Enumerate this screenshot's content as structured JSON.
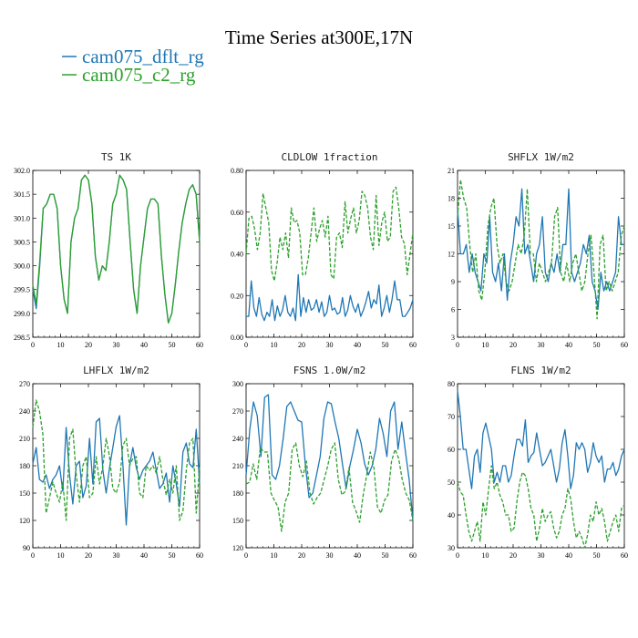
{
  "figure": {
    "title": "Time Series at300E,17N",
    "legend": [
      {
        "label": "cam075_dflt_rg",
        "color": "#1f77b4"
      },
      {
        "label": "cam075_c2_rg",
        "color": "#2ca02c"
      }
    ]
  },
  "chart_data": [
    {
      "type": "line",
      "title": "TS   1K",
      "xlim": [
        0,
        60
      ],
      "ylim": [
        298.5,
        302.0
      ],
      "xticks": [
        "0",
        "10",
        "20",
        "30",
        "40",
        "50",
        "60"
      ],
      "yticks": [
        "298.5",
        "299.0",
        "299.5",
        "300.0",
        "300.5",
        "301.0",
        "301.5",
        "302.0"
      ],
      "series": [
        {
          "name": "cam075_dflt_rg",
          "color": "#1f77b4",
          "dash": "",
          "y": [
            299.5,
            299.1,
            300.0,
            301.2,
            301.3,
            301.5,
            301.5,
            301.2,
            300.0,
            299.3,
            299.0,
            300.5,
            301.0,
            301.2,
            301.8,
            301.9,
            301.8,
            301.3,
            300.2,
            299.7,
            300.0,
            299.9,
            300.5,
            301.3,
            301.5,
            301.9,
            301.8,
            301.6,
            300.5,
            299.5,
            299.0,
            300.0,
            300.6,
            301.2,
            301.4,
            301.4,
            301.3,
            300.2,
            299.4,
            298.8,
            299.0,
            299.6,
            300.3,
            300.9,
            301.3,
            301.6,
            301.7,
            301.5,
            300.5
          ]
        },
        {
          "name": "cam075_c2_rg",
          "color": "#2ca02c",
          "dash": "",
          "y": [
            299.6,
            299.2,
            300.1,
            301.2,
            301.3,
            301.5,
            301.5,
            301.2,
            300.0,
            299.3,
            299.0,
            300.5,
            301.0,
            301.2,
            301.8,
            301.9,
            301.8,
            301.3,
            300.2,
            299.7,
            300.0,
            299.9,
            300.5,
            301.3,
            301.5,
            301.9,
            301.8,
            301.6,
            300.5,
            299.5,
            299.0,
            300.0,
            300.6,
            301.2,
            301.4,
            301.4,
            301.3,
            300.2,
            299.4,
            298.8,
            299.0,
            299.6,
            300.3,
            300.9,
            301.3,
            301.6,
            301.7,
            301.5,
            300.5
          ]
        }
      ]
    },
    {
      "type": "line",
      "title": "CLDLOW   1fraction",
      "xlim": [
        0,
        60
      ],
      "ylim": [
        0.0,
        0.8
      ],
      "xticks": [
        "0",
        "10",
        "20",
        "30",
        "40",
        "50",
        "60"
      ],
      "yticks": [
        "0.00",
        "0.20",
        "0.40",
        "0.60",
        "0.80"
      ],
      "series": [
        {
          "name": "cam075_dflt_rg",
          "color": "#1f77b4",
          "dash": "",
          "y": [
            0.1,
            0.1,
            0.27,
            0.14,
            0.1,
            0.19,
            0.11,
            0.08,
            0.12,
            0.1,
            0.18,
            0.08,
            0.15,
            0.1,
            0.13,
            0.2,
            0.12,
            0.1,
            0.14,
            0.08,
            0.3,
            0.1,
            0.19,
            0.12,
            0.18,
            0.13,
            0.14,
            0.18,
            0.12,
            0.17,
            0.1,
            0.12,
            0.2,
            0.13,
            0.14,
            0.11,
            0.12,
            0.19,
            0.1,
            0.13,
            0.2,
            0.15,
            0.12,
            0.16,
            0.1,
            0.13,
            0.17,
            0.22,
            0.14,
            0.18,
            0.16,
            0.25,
            0.1,
            0.14,
            0.2,
            0.12,
            0.18,
            0.27,
            0.18,
            0.18,
            0.1,
            0.1,
            0.12,
            0.14,
            0.18
          ]
        },
        {
          "name": "cam075_c2_rg",
          "color": "#2ca02c",
          "dash": "4,2",
          "y": [
            0.4,
            0.57,
            0.58,
            0.52,
            0.42,
            0.5,
            0.69,
            0.62,
            0.55,
            0.32,
            0.27,
            0.36,
            0.48,
            0.42,
            0.5,
            0.38,
            0.62,
            0.55,
            0.56,
            0.5,
            0.3,
            0.3,
            0.38,
            0.5,
            0.62,
            0.46,
            0.52,
            0.56,
            0.48,
            0.58,
            0.3,
            0.28,
            0.48,
            0.5,
            0.43,
            0.65,
            0.5,
            0.57,
            0.62,
            0.5,
            0.56,
            0.7,
            0.68,
            0.62,
            0.48,
            0.42,
            0.68,
            0.44,
            0.55,
            0.6,
            0.46,
            0.48,
            0.7,
            0.72,
            0.62,
            0.48,
            0.45,
            0.3,
            0.4,
            0.5
          ]
        }
      ]
    },
    {
      "type": "line",
      "title": "SHFLX   1W/m2",
      "xlim": [
        0,
        60
      ],
      "ylim": [
        3,
        21
      ],
      "xticks": [
        "0",
        "10",
        "20",
        "30",
        "40",
        "50",
        "60"
      ],
      "yticks": [
        "3",
        "6",
        "9",
        "12",
        "15",
        "18",
        "21"
      ],
      "series": [
        {
          "name": "cam075_dflt_rg",
          "color": "#1f77b4",
          "dash": "",
          "y": [
            17,
            12,
            12,
            13,
            10,
            12,
            10,
            9,
            8,
            12,
            11,
            16,
            10,
            9,
            11,
            8,
            12,
            7,
            11,
            13,
            16,
            15,
            19,
            12,
            13,
            11,
            9,
            12,
            13,
            16,
            10,
            9,
            11,
            10,
            12,
            10,
            13,
            13,
            19,
            10,
            9,
            10,
            11,
            13,
            12,
            14,
            9,
            8,
            6,
            10,
            8,
            9,
            8,
            9,
            10,
            16,
            13,
            13
          ]
        },
        {
          "name": "cam075_c2_rg",
          "color": "#2ca02c",
          "dash": "4,2",
          "y": [
            16,
            20,
            18,
            17,
            13,
            10,
            12,
            8,
            7,
            10,
            15,
            17,
            18,
            13,
            11,
            12,
            9,
            8,
            9,
            11,
            13,
            12,
            14,
            19,
            12,
            12,
            9,
            11,
            10,
            9,
            10,
            11,
            16,
            17,
            10,
            9,
            11,
            9,
            11,
            12,
            10,
            8,
            9,
            12,
            14,
            10,
            5,
            13,
            14,
            8,
            9,
            8,
            9,
            10,
            14,
            15
          ]
        }
      ]
    },
    {
      "type": "line",
      "title": "LHFLX   1W/m2",
      "xlim": [
        0,
        60
      ],
      "ylim": [
        90,
        270
      ],
      "xticks": [
        "0",
        "10",
        "20",
        "30",
        "40",
        "50",
        "60"
      ],
      "yticks": [
        "90",
        "120",
        "150",
        "180",
        "210",
        "240",
        "270"
      ],
      "series": [
        {
          "name": "cam075_dflt_rg",
          "color": "#1f77b4",
          "dash": "",
          "y": [
            182,
            200,
            165,
            162,
            170,
            155,
            165,
            170,
            180,
            152,
            222,
            170,
            138,
            180,
            185,
            145,
            158,
            210,
            160,
            228,
            232,
            175,
            150,
            178,
            200,
            223,
            235,
            182,
            115,
            180,
            200,
            178,
            165,
            175,
            180,
            185,
            195,
            175,
            155,
            160,
            172,
            140,
            180,
            160,
            135,
            195,
            205,
            182,
            178,
            220,
            160
          ]
        },
        {
          "name": "cam075_c2_rg",
          "color": "#2ca02c",
          "dash": "4,2",
          "y": [
            222,
            252,
            240,
            215,
            128,
            145,
            162,
            150,
            140,
            162,
            120,
            210,
            220,
            170,
            140,
            180,
            190,
            145,
            150,
            190,
            160,
            180,
            210,
            190,
            155,
            150,
            162,
            202,
            210,
            180,
            188,
            190,
            150,
            145,
            180,
            175,
            180,
            172,
            190,
            165,
            148,
            165,
            150,
            180,
            120,
            130,
            175,
            205,
            210,
            128,
            180
          ]
        }
      ]
    },
    {
      "type": "line",
      "title": "FSNS   1.0W/m2",
      "xlim": [
        0,
        60
      ],
      "ylim": [
        120,
        300
      ],
      "xticks": [
        "0",
        "10",
        "20",
        "30",
        "40",
        "50",
        "60"
      ],
      "yticks": [
        "120",
        "150",
        "180",
        "210",
        "240",
        "270",
        "300"
      ],
      "series": [
        {
          "name": "cam075_dflt_rg",
          "color": "#1f77b4",
          "dash": "",
          "y": [
            200,
            250,
            280,
            265,
            220,
            285,
            288,
            200,
            195,
            210,
            240,
            275,
            280,
            270,
            260,
            258,
            210,
            175,
            180,
            200,
            220,
            262,
            280,
            278,
            258,
            240,
            212,
            185,
            210,
            228,
            250,
            235,
            212,
            200,
            210,
            228,
            262,
            245,
            220,
            270,
            280,
            228,
            258,
            225,
            195,
            150
          ]
        },
        {
          "name": "cam075_c2_rg",
          "color": "#2ca02c",
          "dash": "4,2",
          "y": [
            190,
            192,
            212,
            195,
            230,
            225,
            225,
            180,
            172,
            165,
            138,
            170,
            180,
            228,
            235,
            210,
            198,
            215,
            180,
            168,
            175,
            180,
            195,
            210,
            228,
            235,
            195,
            178,
            182,
            208,
            170,
            160,
            148,
            178,
            200,
            225,
            208,
            165,
            158,
            172,
            178,
            215,
            228,
            218,
            195,
            180,
            172,
            150
          ]
        }
      ]
    },
    {
      "type": "line",
      "title": "FLNS   1W/m2",
      "xlim": [
        0,
        60
      ],
      "ylim": [
        30,
        80
      ],
      "xticks": [
        "0",
        "10",
        "20",
        "30",
        "40",
        "50",
        "60"
      ],
      "yticks": [
        "30",
        "40",
        "50",
        "60",
        "70",
        "80"
      ],
      "series": [
        {
          "name": "cam075_dflt_rg",
          "color": "#1f77b4",
          "dash": "",
          "y": [
            78,
            70,
            60,
            60,
            54,
            48,
            58,
            60,
            53,
            65,
            68,
            64,
            60,
            50,
            53,
            50,
            55,
            55,
            50,
            52,
            58,
            63,
            63,
            61,
            69,
            56,
            58,
            59,
            65,
            60,
            55,
            56,
            58,
            60,
            55,
            50,
            54,
            62,
            66,
            58,
            48,
            52,
            62,
            60,
            62,
            60,
            53,
            56,
            62,
            58,
            56,
            58,
            50,
            54,
            54,
            56,
            52,
            54,
            58,
            60
          ]
        },
        {
          "name": "cam075_c2_rg",
          "color": "#2ca02c",
          "dash": "4,2",
          "y": [
            50,
            47,
            46,
            40,
            35,
            32,
            35,
            38,
            32,
            44,
            40,
            48,
            55,
            48,
            50,
            46,
            44,
            40,
            40,
            35,
            36,
            44,
            50,
            53,
            52,
            48,
            42,
            40,
            32,
            36,
            42,
            38,
            40,
            41,
            36,
            33,
            35,
            40,
            42,
            48,
            45,
            38,
            33,
            35,
            33,
            30,
            34,
            40,
            38,
            44,
            40,
            42,
            38,
            32,
            35,
            38,
            40,
            35,
            42,
            43
          ]
        }
      ]
    }
  ]
}
